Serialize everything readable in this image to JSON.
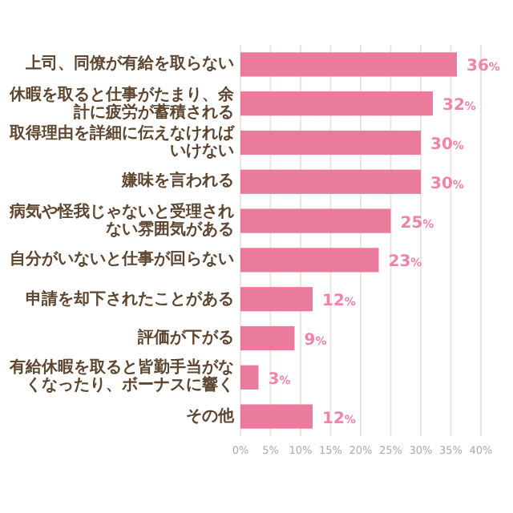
{
  "chart_data": {
    "type": "bar",
    "orientation": "horizontal",
    "categories": [
      "上司、同僚が有給を取らない",
      "休暇を取ると仕事がたまり、余計に疲労が蓄積される",
      "取得理由を詳細に伝えなければいけない",
      "嫌味を言われる",
      "病気や怪我じゃないと受理されない雰囲気がある",
      "自分がいないと仕事が回らない",
      "申請を却下されたことがある",
      "評価が下がる",
      "有給休暇を取ると皆勤手当がなくなったり、ボーナスに響く",
      "その他"
    ],
    "values": [
      36,
      32,
      30,
      30,
      25,
      23,
      12,
      9,
      3,
      12
    ],
    "value_labels": [
      "36%",
      "32%",
      "30%",
      "30%",
      "25%",
      "23%",
      "12%",
      "9%",
      "3%",
      "12%"
    ],
    "color": "#ea7b9c",
    "xlim": [
      0,
      40
    ],
    "xticks": [
      {
        "value": 0,
        "label": "0%"
      },
      {
        "value": 5,
        "label": "5%"
      },
      {
        "value": 10,
        "label": "10%"
      },
      {
        "value": 15,
        "label": "15%"
      },
      {
        "value": 20,
        "label": "20%"
      },
      {
        "value": 25,
        "label": "25%"
      },
      {
        "value": 30,
        "label": "30%"
      },
      {
        "value": 35,
        "label": "35%"
      },
      {
        "value": 40,
        "label": "40%"
      }
    ],
    "grid": "x"
  }
}
